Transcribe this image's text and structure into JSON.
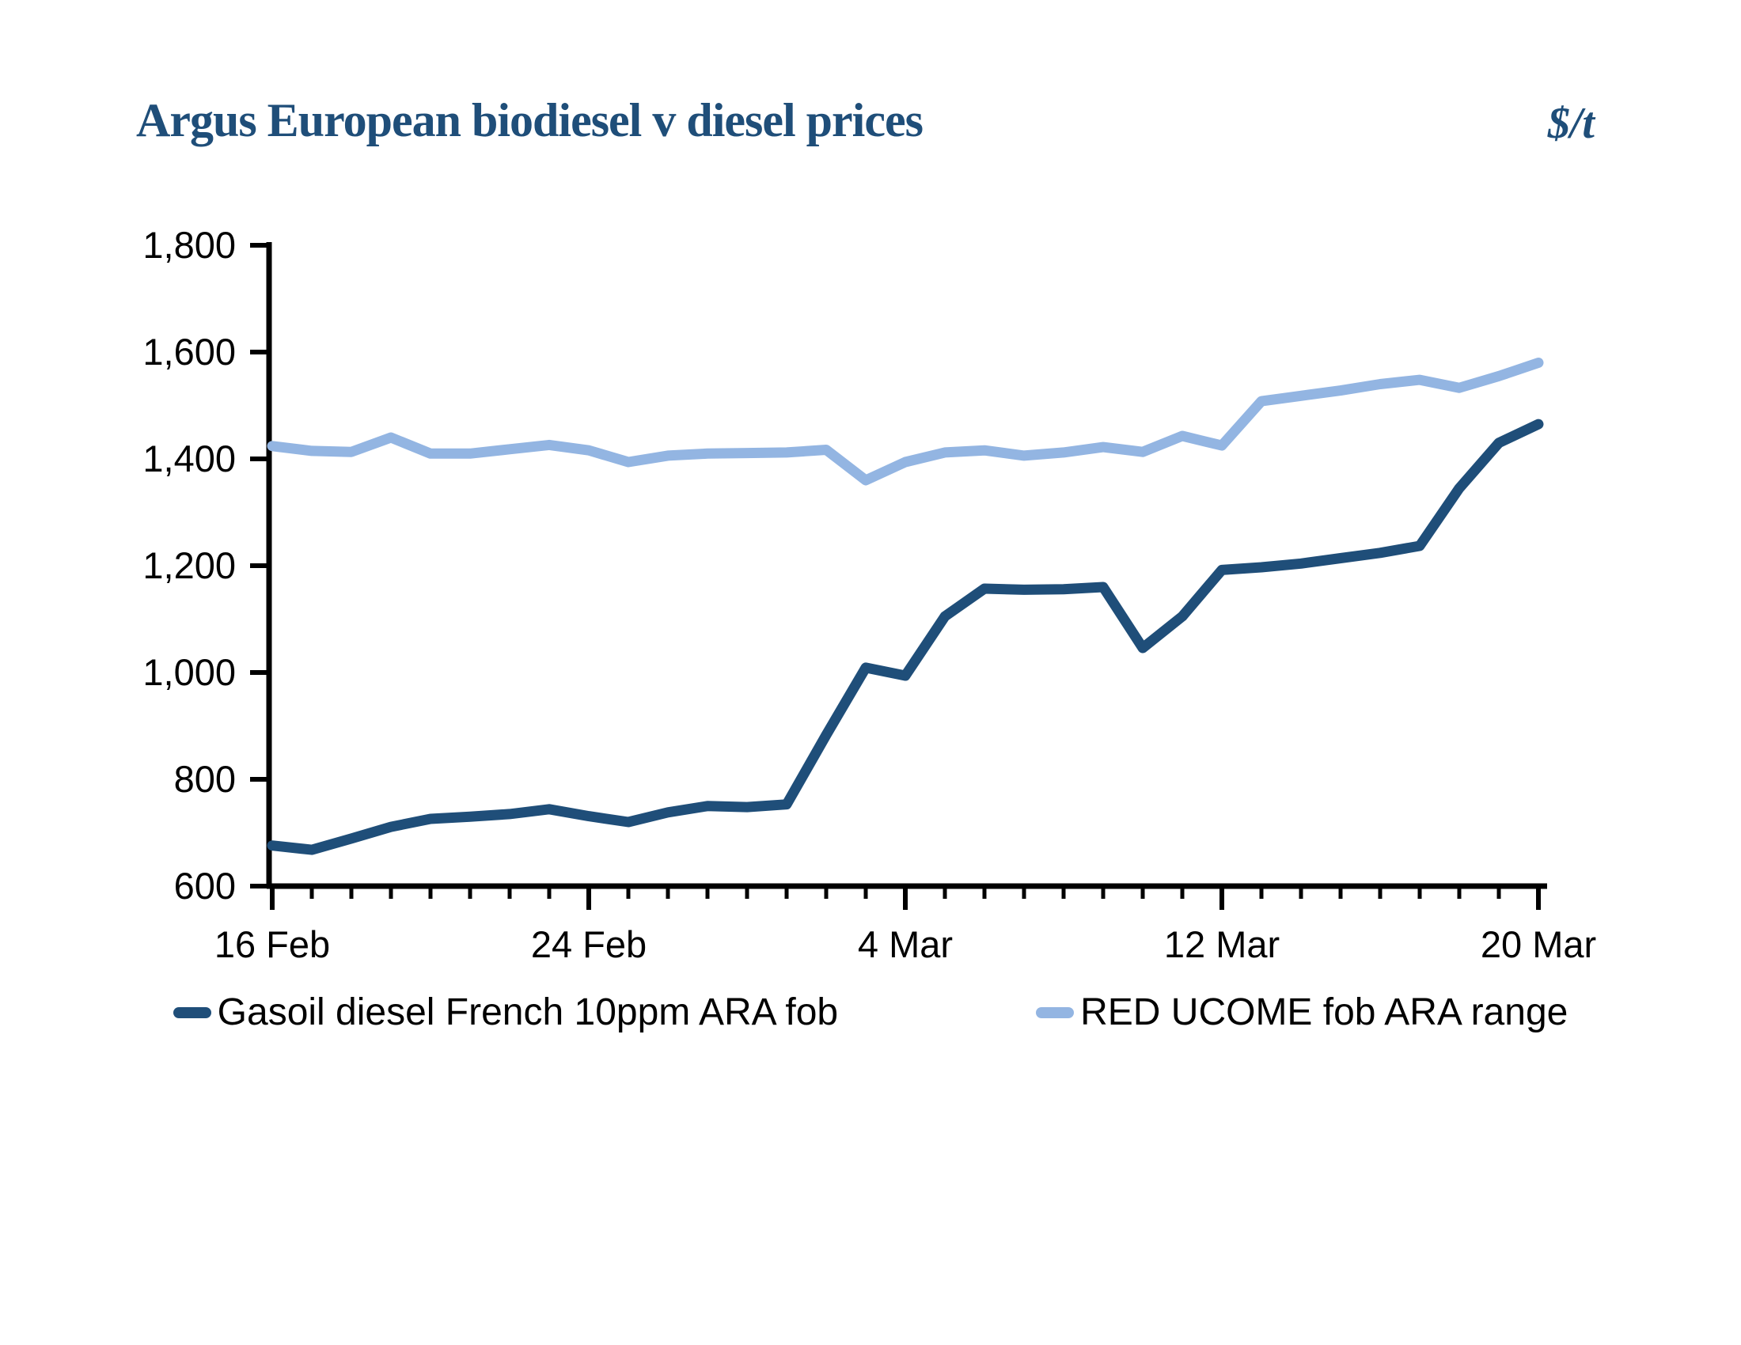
{
  "header": {
    "title": "Argus European biodiesel v diesel prices",
    "unit": "$/t"
  },
  "chart_data": {
    "type": "line",
    "title": "Argus European biodiesel v diesel prices",
    "unit": "$/t",
    "xlabel": "",
    "ylabel": "$/t",
    "ylim": [
      600,
      1800
    ],
    "ytick_step": 200,
    "grid": false,
    "legend_position": "bottom",
    "y_ticks": [
      {
        "v": 600,
        "label": "600"
      },
      {
        "v": 800,
        "label": "800"
      },
      {
        "v": 1000,
        "label": "1,000"
      },
      {
        "v": 1200,
        "label": "1,200"
      },
      {
        "v": 1400,
        "label": "1,400"
      },
      {
        "v": 1600,
        "label": "1,600"
      },
      {
        "v": 1800,
        "label": "1,800"
      }
    ],
    "categories": [
      "16 Feb",
      "17 Feb",
      "18 Feb",
      "19 Feb",
      "20 Feb",
      "21 Feb",
      "22 Feb",
      "23 Feb",
      "24 Feb",
      "25 Feb",
      "26 Feb",
      "27 Feb",
      "28 Feb",
      "1 Mar",
      "2 Mar",
      "3 Mar",
      "4 Mar",
      "5 Mar",
      "6 Mar",
      "7 Mar",
      "8 Mar",
      "9 Mar",
      "10 Mar",
      "11 Mar",
      "12 Mar",
      "13 Mar",
      "14 Mar",
      "15 Mar",
      "16 Mar",
      "17 Mar",
      "18 Mar",
      "19 Mar",
      "20 Mar"
    ],
    "x_major_ticks": [
      {
        "index": 0,
        "label": "16 Feb"
      },
      {
        "index": 8,
        "label": "24 Feb"
      },
      {
        "index": 16,
        "label": "4 Mar"
      },
      {
        "index": 24,
        "label": "12 Mar"
      },
      {
        "index": 32,
        "label": "20 Mar"
      }
    ],
    "series": [
      {
        "name": "Gasoil diesel French 10ppm ARA fob",
        "color": "#1F4E79",
        "values": [
          676,
          668,
          689,
          711,
          726,
          730,
          735,
          744,
          731,
          720,
          738,
          750,
          748,
          753,
          883,
          1009,
          994,
          1105,
          1157,
          1155,
          1156,
          1160,
          1046,
          1105,
          1192,
          1197,
          1204,
          1214,
          1224,
          1237,
          1345,
          1430,
          1465
        ]
      },
      {
        "name": "RED UCOME fob ARA range",
        "color": "#93B5E2",
        "values": [
          1424,
          1415,
          1413,
          1440,
          1410,
          1410,
          1418,
          1426,
          1416,
          1394,
          1406,
          1410,
          1411,
          1412,
          1417,
          1360,
          1394,
          1412,
          1416,
          1406,
          1412,
          1422,
          1413,
          1443,
          1425,
          1508,
          1518,
          1528,
          1540,
          1548,
          1533,
          1555,
          1580
        ]
      }
    ]
  }
}
